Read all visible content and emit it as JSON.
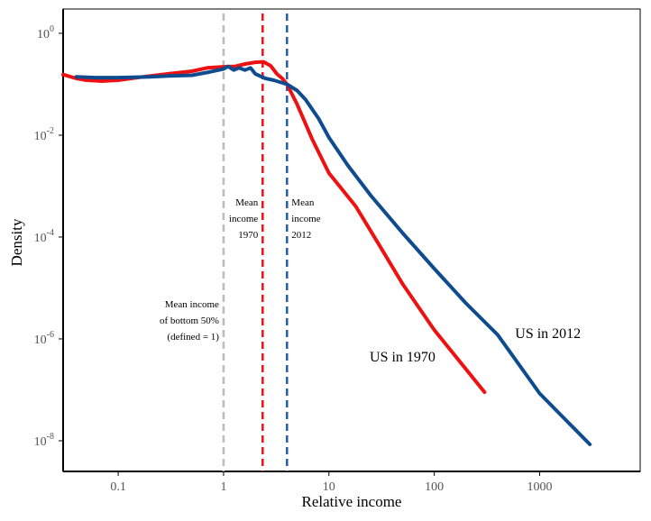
{
  "chart_data": {
    "type": "line",
    "title": "",
    "xlabel": "Relative income",
    "ylabel": "Density",
    "xscale": "log",
    "yscale": "log",
    "xlim": [
      0.03,
      9000
    ],
    "ylim": [
      2.5e-09,
      3.0
    ],
    "grid": false,
    "legend": "none",
    "x_ticks": [
      {
        "value": 0.1,
        "label": "0.1"
      },
      {
        "value": 1,
        "label": "1"
      },
      {
        "value": 10,
        "label": "10"
      },
      {
        "value": 100,
        "label": "100"
      },
      {
        "value": 1000,
        "label": "1000"
      }
    ],
    "y_ticks": [
      {
        "value": 1,
        "base": "10",
        "exp": "0"
      },
      {
        "value": 0.01,
        "base": "10",
        "exp": "-2"
      },
      {
        "value": 0.0001,
        "base": "10",
        "exp": "-4"
      },
      {
        "value": 1e-06,
        "base": "10",
        "exp": "-6"
      },
      {
        "value": 1e-08,
        "base": "10",
        "exp": "-8"
      }
    ],
    "series": [
      {
        "name": "US in 1970",
        "color": "#ee1111",
        "x": [
          0.03,
          0.04,
          0.05,
          0.07,
          0.1,
          0.15,
          0.2,
          0.3,
          0.5,
          0.7,
          1.0,
          1.3,
          1.6,
          2.0,
          2.4,
          2.8,
          3.2,
          3.6,
          4.0,
          5.0,
          7.0,
          10.0,
          18.0,
          30.0,
          50.0,
          100.0,
          300.0
        ],
        "y": [
          0.155,
          0.13,
          0.12,
          0.115,
          0.12,
          0.135,
          0.145,
          0.16,
          0.18,
          0.21,
          0.22,
          0.225,
          0.25,
          0.27,
          0.275,
          0.23,
          0.16,
          0.13,
          0.1,
          0.04,
          0.008,
          0.0018,
          0.0004,
          7e-05,
          1.2e-05,
          1.5e-06,
          9e-08
        ]
      },
      {
        "name": "US in 2012",
        "color": "#0f4c8f",
        "x": [
          0.04,
          0.06,
          0.1,
          0.15,
          0.2,
          0.3,
          0.5,
          0.7,
          1.0,
          1.1,
          1.25,
          1.4,
          1.6,
          1.8,
          2.0,
          2.5,
          3.0,
          4.0,
          5.0,
          6.0,
          8.0,
          10.0,
          15.0,
          25.0,
          50.0,
          100.0,
          200.0,
          400.0,
          1000.0,
          3000.0
        ],
        "y": [
          0.14,
          0.135,
          0.135,
          0.138,
          0.14,
          0.145,
          0.15,
          0.17,
          0.2,
          0.225,
          0.19,
          0.21,
          0.19,
          0.21,
          0.16,
          0.13,
          0.12,
          0.1,
          0.075,
          0.05,
          0.021,
          0.009,
          0.0026,
          0.00065,
          0.00012,
          2.4e-05,
          5e-06,
          1.2e-06,
          8.5e-08,
          8.5e-09
        ]
      }
    ],
    "series_labels": [
      {
        "text": "US in 1970",
        "x": 50,
        "y": 3.6e-07
      },
      {
        "text": "US in 2012",
        "x": 1200,
        "y": 1.05e-06
      }
    ],
    "vertical_lines": [
      {
        "x": 1.0,
        "color": "#bbbbbb",
        "label_lines": [
          "Mean income",
          "of bottom 50%",
          "(defined = 1)"
        ],
        "label_side": "left",
        "label_y": 2e-06
      },
      {
        "x": 2.35,
        "color": "#ee1111",
        "label_lines": [
          "Mean",
          "income",
          "1970"
        ],
        "label_side": "left",
        "label_y": 0.0002
      },
      {
        "x": 4.0,
        "color": "#1f5fa6",
        "label_lines": [
          "Mean",
          "income",
          "2012"
        ],
        "label_side": "right",
        "label_y": 0.0002
      }
    ]
  }
}
